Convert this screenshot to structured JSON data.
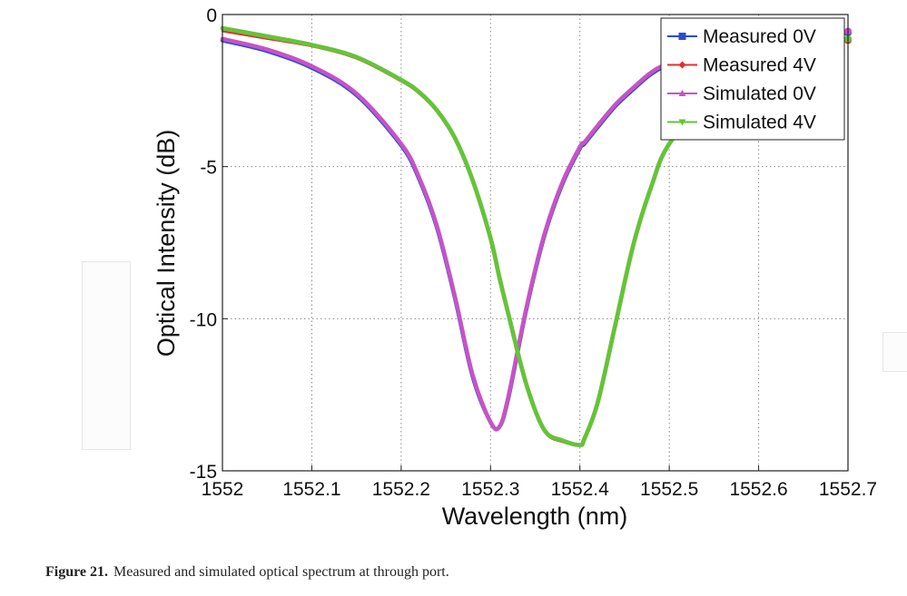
{
  "figure": {
    "label": "Figure 21.",
    "caption": "Measured and simulated optical spectrum at through port."
  },
  "chart_data": {
    "type": "line",
    "title": "",
    "xlabel": "Wavelength (nm)",
    "ylabel": "Optical Intensity (dB)",
    "xlim": [
      1552,
      1552.7
    ],
    "ylim": [
      -15,
      0
    ],
    "x_ticks": [
      "1552",
      "1552.1",
      "1552.2",
      "1552.3",
      "1552.4",
      "1552.5",
      "1552.6",
      "1552.7"
    ],
    "y_ticks": [
      "0",
      "-5",
      "-10",
      "-15"
    ],
    "grid": true,
    "legend_position": "top-right",
    "x": [
      1552.0,
      1552.05,
      1552.1,
      1552.15,
      1552.2,
      1552.22,
      1552.24,
      1552.26,
      1552.28,
      1552.3,
      1552.31,
      1552.32,
      1552.34,
      1552.36,
      1552.38,
      1552.4,
      1552.405,
      1552.42,
      1552.44,
      1552.46,
      1552.48,
      1552.5,
      1552.55,
      1552.6,
      1552.65,
      1552.7
    ],
    "series": [
      {
        "name": "Measured 0V",
        "color": "#2b4bd6",
        "marker": "square",
        "values": [
          -0.85,
          -1.2,
          -1.75,
          -2.65,
          -4.3,
          -5.4,
          -7.0,
          -9.3,
          -11.9,
          -13.4,
          -13.55,
          -12.6,
          -9.7,
          -7.3,
          -5.6,
          -4.4,
          -4.25,
          -3.7,
          -3.0,
          -2.45,
          -1.95,
          -1.65,
          -1.15,
          -0.9,
          -0.75,
          -0.6
        ]
      },
      {
        "name": "Measured 4V",
        "color": "#e82b2b",
        "marker": "diamond",
        "values": [
          -0.55,
          -0.8,
          -1.05,
          -1.45,
          -2.2,
          -2.6,
          -3.2,
          -4.1,
          -5.5,
          -7.4,
          -8.7,
          -9.9,
          -12.2,
          -13.7,
          -14.05,
          -14.15,
          -14.0,
          -12.8,
          -10.2,
          -7.6,
          -5.7,
          -4.3,
          -2.6,
          -1.75,
          -1.25,
          -0.85
        ]
      },
      {
        "name": "Simulated 0V",
        "color": "#c653c6",
        "marker": "triangle-up",
        "values": [
          -0.8,
          -1.15,
          -1.7,
          -2.6,
          -4.25,
          -5.35,
          -6.95,
          -9.25,
          -11.85,
          -13.4,
          -13.55,
          -12.55,
          -9.65,
          -7.25,
          -5.55,
          -4.35,
          -4.2,
          -3.65,
          -2.95,
          -2.4,
          -1.9,
          -1.6,
          -1.1,
          -0.85,
          -0.7,
          -0.55
        ]
      },
      {
        "name": "Simulated 4V",
        "color": "#66c23a",
        "marker": "triangle-down",
        "values": [
          -0.45,
          -0.72,
          -1.0,
          -1.4,
          -2.15,
          -2.55,
          -3.15,
          -4.05,
          -5.45,
          -7.35,
          -8.65,
          -9.85,
          -12.15,
          -13.65,
          -14.0,
          -14.15,
          -13.95,
          -12.75,
          -10.15,
          -7.55,
          -5.65,
          -4.25,
          -2.55,
          -1.7,
          -1.2,
          -0.8
        ]
      }
    ]
  }
}
